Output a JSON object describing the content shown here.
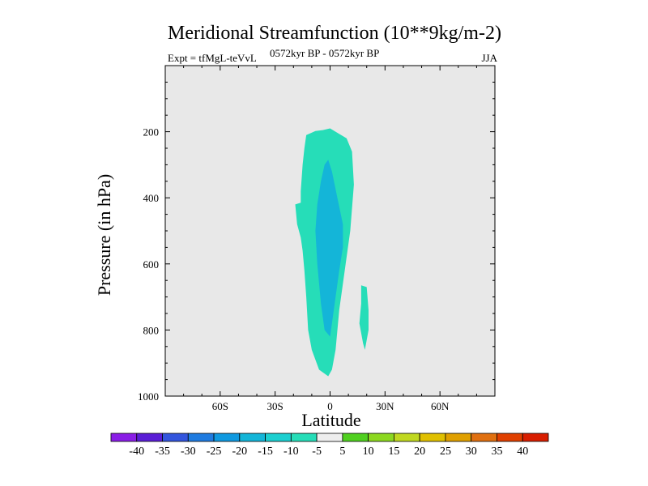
{
  "title": "Meridional Streamfunction (10**9kg/m-2)",
  "subtitle": "0572kyr BP - 0572kyr BP",
  "left_label": "Expt = tfMgL-teVvL",
  "right_label": "JJA",
  "chart_data": {
    "type": "contour",
    "xlabel": "Latitude",
    "ylabel": "Pressure (in hPa)",
    "xlim": [
      -90,
      90
    ],
    "ylim": [
      1000,
      0
    ],
    "x_ticks": [
      -60,
      -30,
      0,
      30,
      60
    ],
    "x_tick_labels": [
      "60S",
      "30S",
      "0",
      "30N",
      "60N"
    ],
    "y_ticks": [
      200,
      400,
      600,
      800,
      1000
    ],
    "y_tick_labels": [
      "200",
      "400",
      "600",
      "800",
      "1000"
    ],
    "background_color": "#e8e8e8",
    "contour_levels": [
      -40,
      -35,
      -30,
      -25,
      -20,
      -15,
      -10,
      -5,
      5,
      10,
      15,
      20,
      25,
      30,
      35,
      40
    ],
    "colorbar_tick_labels": [
      "-40",
      "-35",
      "-30",
      "-25",
      "-20",
      "-15",
      "-10",
      "-5",
      "5",
      "10",
      "15",
      "20",
      "25",
      "30",
      "35",
      "40"
    ],
    "colorbar_colors": [
      "#8a1ee6",
      "#5a1ed6",
      "#3355dd",
      "#1f7be0",
      "#0f99e0",
      "#14b5d8",
      "#1ccfd0",
      "#26ddb8",
      "#eeeeee",
      "#50d020",
      "#8cd820",
      "#c0d820",
      "#e0c000",
      "#e0a000",
      "#e07010",
      "#e04000",
      "#d81e00"
    ],
    "regions": [
      {
        "name": "outer-negative",
        "range": "-10 to -5",
        "color": "#26ddb8",
        "polygon": [
          [
            -4,
            195
          ],
          [
            0,
            190
          ],
          [
            3,
            200
          ],
          [
            9,
            220
          ],
          [
            12,
            260
          ],
          [
            13,
            360
          ],
          [
            11,
            500
          ],
          [
            8,
            620
          ],
          [
            5,
            740
          ],
          [
            3,
            860
          ],
          [
            1,
            920
          ],
          [
            -1,
            940
          ],
          [
            -6,
            920
          ],
          [
            -10,
            860
          ],
          [
            -12,
            800
          ],
          [
            -13,
            700
          ],
          [
            -14,
            620
          ],
          [
            -15,
            560
          ],
          [
            -16,
            520
          ],
          [
            -18,
            480
          ],
          [
            -19,
            420
          ],
          [
            -16,
            415
          ],
          [
            -16,
            380
          ],
          [
            -15,
            300
          ],
          [
            -14,
            250
          ],
          [
            -13,
            210
          ],
          [
            -8,
            198
          ]
        ]
      },
      {
        "name": "inner-negative",
        "range": "-15 to -10",
        "color": "#14b5d8",
        "polygon": [
          [
            -1,
            285
          ],
          [
            1,
            320
          ],
          [
            4,
            400
          ],
          [
            7,
            480
          ],
          [
            7,
            550
          ],
          [
            5,
            620
          ],
          [
            3,
            700
          ],
          [
            1,
            780
          ],
          [
            0,
            820
          ],
          [
            -3,
            800
          ],
          [
            -5,
            720
          ],
          [
            -7,
            600
          ],
          [
            -8,
            500
          ],
          [
            -7,
            420
          ],
          [
            -5,
            350
          ],
          [
            -3,
            300
          ]
        ]
      },
      {
        "name": "secondary-negative",
        "range": "-10 to -5",
        "color": "#26ddb8",
        "polygon": [
          [
            17,
            665
          ],
          [
            20,
            670
          ],
          [
            21,
            740
          ],
          [
            21,
            800
          ],
          [
            19,
            860
          ],
          [
            18,
            840
          ],
          [
            16,
            780
          ],
          [
            17,
            720
          ]
        ]
      }
    ]
  }
}
